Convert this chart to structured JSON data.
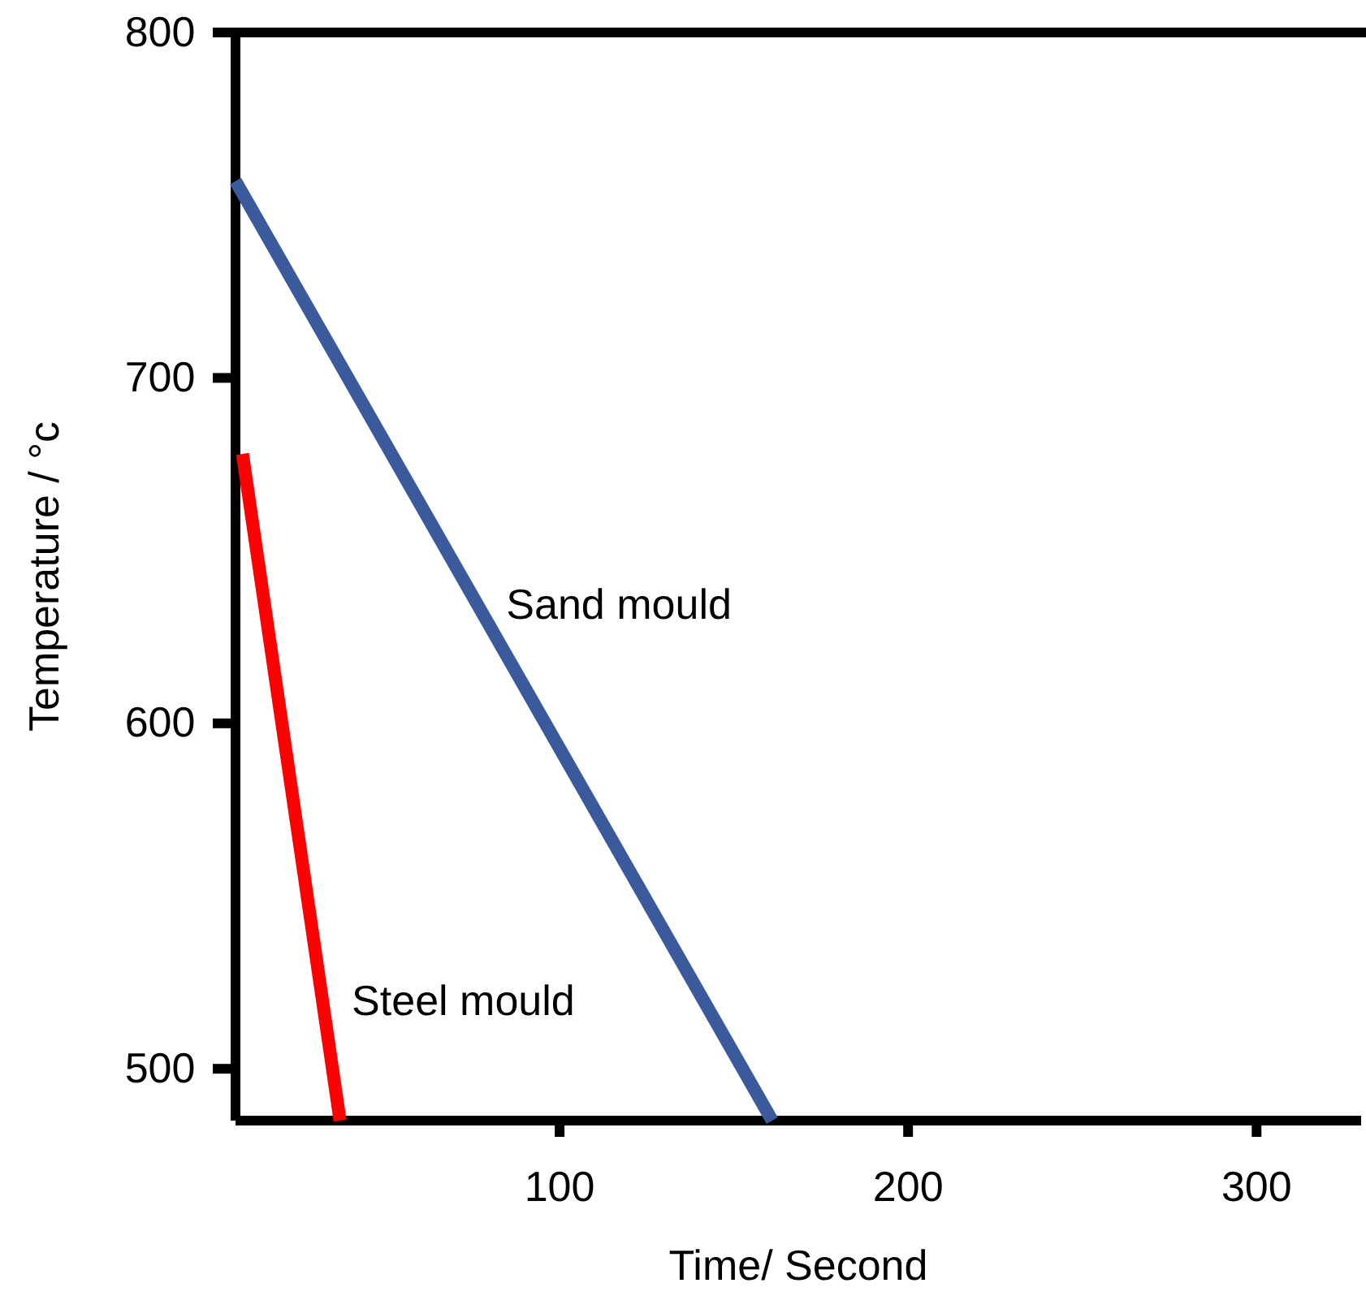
{
  "chart_data": {
    "type": "line",
    "xlabel": "Time/ Second",
    "ylabel": "Temperature / °c",
    "xlim": [
      7,
      330
    ],
    "ylim": [
      485,
      800
    ],
    "xticks": [
      100,
      200,
      300
    ],
    "yticks": [
      500,
      600,
      700,
      800
    ],
    "grid": false,
    "legend": false,
    "marker": "none",
    "line_style": "solid",
    "series": [
      {
        "name": "Sand mould",
        "color": "#3a5a9c",
        "x": [
          7,
          161
        ],
        "values": [
          757,
          485
        ]
      },
      {
        "name": "Steel mould",
        "color": "#ff0000",
        "x": [
          9,
          37
        ],
        "values": [
          678,
          485
        ]
      }
    ]
  }
}
